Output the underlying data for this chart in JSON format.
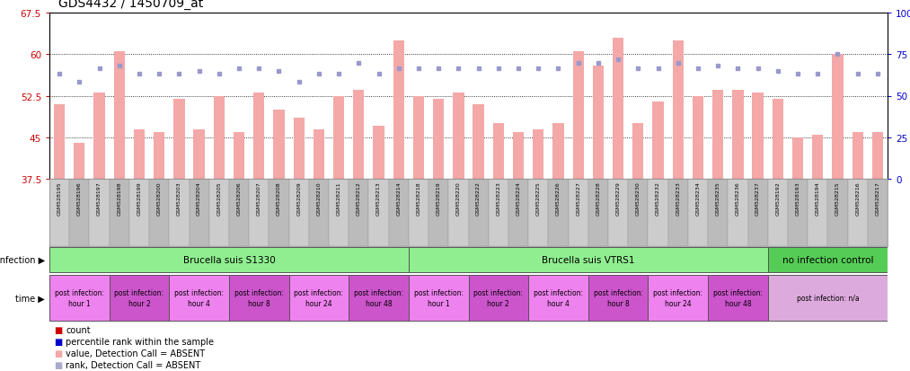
{
  "title": "GDS4432 / 1450709_at",
  "samples": [
    "GSM528195",
    "GSM528196",
    "GSM528197",
    "GSM528198",
    "GSM528199",
    "GSM528200",
    "GSM528203",
    "GSM528204",
    "GSM528205",
    "GSM528206",
    "GSM528207",
    "GSM528208",
    "GSM528209",
    "GSM528210",
    "GSM528211",
    "GSM528212",
    "GSM528213",
    "GSM528214",
    "GSM528218",
    "GSM528219",
    "GSM528220",
    "GSM528222",
    "GSM528223",
    "GSM528224",
    "GSM528225",
    "GSM528226",
    "GSM528227",
    "GSM528228",
    "GSM528229",
    "GSM528230",
    "GSM528232",
    "GSM528233",
    "GSM528234",
    "GSM528235",
    "GSM528236",
    "GSM528237",
    "GSM528192",
    "GSM528193",
    "GSM528194",
    "GSM528215",
    "GSM528216",
    "GSM528217"
  ],
  "bar_values": [
    51.0,
    44.0,
    53.0,
    60.5,
    46.5,
    46.0,
    52.0,
    46.5,
    52.5,
    46.0,
    53.0,
    50.0,
    48.5,
    46.5,
    52.5,
    53.5,
    47.0,
    62.5,
    52.5,
    52.0,
    53.0,
    51.0,
    47.5,
    46.0,
    46.5,
    47.5,
    60.5,
    58.0,
    63.0,
    47.5,
    51.5,
    62.5,
    52.5,
    53.5,
    53.5,
    53.0,
    52.0,
    45.0,
    45.5,
    60.0,
    46.0,
    46.0
  ],
  "rank_values": [
    56.5,
    55.0,
    57.5,
    58.0,
    56.5,
    56.5,
    56.5,
    57.0,
    56.5,
    57.5,
    57.5,
    57.0,
    55.0,
    56.5,
    56.5,
    58.5,
    56.5,
    57.5,
    57.5,
    57.5,
    57.5,
    57.5,
    57.5,
    57.5,
    57.5,
    57.5,
    58.5,
    58.5,
    59.0,
    57.5,
    57.5,
    58.5,
    57.5,
    58.0,
    57.5,
    57.5,
    57.0,
    56.5,
    56.5,
    60.0,
    56.5,
    56.5
  ],
  "bar_color": "#f4a8a8",
  "rank_color": "#9999cc",
  "ylim_left": [
    37.5,
    67.5
  ],
  "ylim_right": [
    0,
    100
  ],
  "yticks_left": [
    37.5,
    45.0,
    52.5,
    60.0,
    67.5
  ],
  "yticks_right": [
    0,
    25,
    50,
    75,
    100
  ],
  "ytick_labels_left": [
    "37.5",
    "45",
    "52.5",
    "60",
    "67.5"
  ],
  "ytick_labels_right": [
    "0",
    "25",
    "50",
    "75",
    "100%"
  ],
  "infection_groups": [
    {
      "label": "Brucella suis S1330",
      "start": 0,
      "end": 17,
      "color": "#90ee90"
    },
    {
      "label": "Brucella suis VTRS1",
      "start": 18,
      "end": 35,
      "color": "#90ee90"
    },
    {
      "label": "no infection control",
      "start": 36,
      "end": 41,
      "color": "#55cc55"
    }
  ],
  "time_groups": [
    {
      "label": "post infection:\nhour 1",
      "start": 0,
      "end": 2,
      "color": "#ee82ee"
    },
    {
      "label": "post infection:\nhour 2",
      "start": 3,
      "end": 5,
      "color": "#cc55cc"
    },
    {
      "label": "post infection:\nhour 4",
      "start": 6,
      "end": 8,
      "color": "#ee82ee"
    },
    {
      "label": "post infection:\nhour 8",
      "start": 9,
      "end": 11,
      "color": "#cc55cc"
    },
    {
      "label": "post infection:\nhour 24",
      "start": 12,
      "end": 14,
      "color": "#ee82ee"
    },
    {
      "label": "post infection:\nhour 48",
      "start": 15,
      "end": 17,
      "color": "#cc55cc"
    },
    {
      "label": "post infection:\nhour 1",
      "start": 18,
      "end": 20,
      "color": "#ee82ee"
    },
    {
      "label": "post infection:\nhour 2",
      "start": 21,
      "end": 23,
      "color": "#cc55cc"
    },
    {
      "label": "post infection:\nhour 4",
      "start": 24,
      "end": 26,
      "color": "#ee82ee"
    },
    {
      "label": "post infection:\nhour 8",
      "start": 27,
      "end": 29,
      "color": "#cc55cc"
    },
    {
      "label": "post infection:\nhour 24",
      "start": 30,
      "end": 32,
      "color": "#ee82ee"
    },
    {
      "label": "post infection:\nhour 48",
      "start": 33,
      "end": 35,
      "color": "#cc55cc"
    },
    {
      "label": "post infection: n/a",
      "start": 36,
      "end": 41,
      "color": "#ddaadd"
    }
  ],
  "legend_items": [
    {
      "label": "count",
      "color": "#cc0000"
    },
    {
      "label": "percentile rank within the sample",
      "color": "#0000cc"
    },
    {
      "label": "value, Detection Call = ABSENT",
      "color": "#f4a8a8"
    },
    {
      "label": "rank, Detection Call = ABSENT",
      "color": "#aaaacc"
    }
  ],
  "left_label_color": "#cc0000",
  "right_label_color": "#0000cc"
}
